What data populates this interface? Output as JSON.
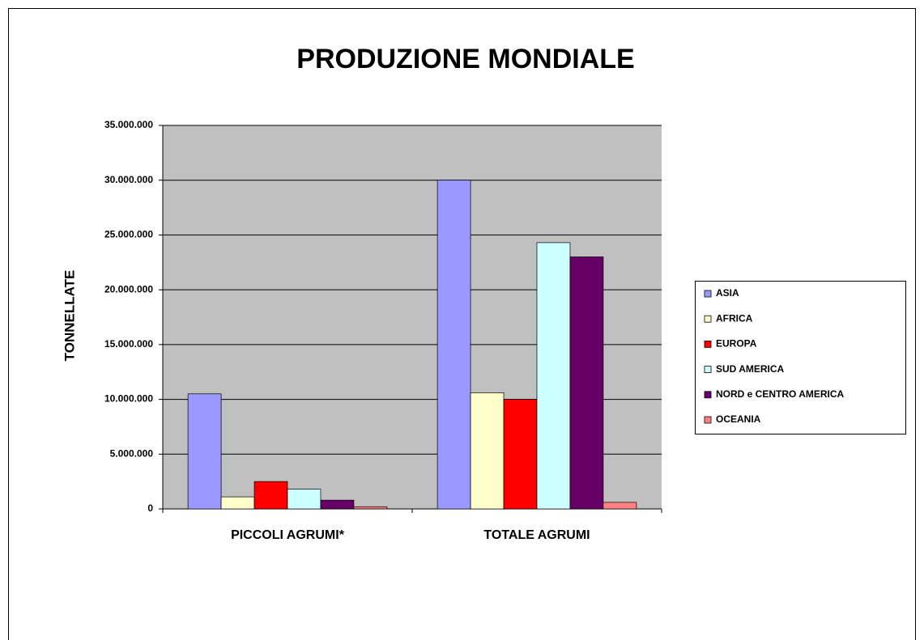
{
  "chart_data": {
    "type": "bar",
    "title": "PRODUZIONE MONDIALE",
    "y_label": "TONNELLATE",
    "categories": [
      "PICCOLI AGRUMI*",
      "TOTALE AGRUMI"
    ],
    "series": [
      {
        "name": "ASIA",
        "color": "#9999ff",
        "values": [
          10500000,
          30000000
        ]
      },
      {
        "name": "AFRICA",
        "color": "#ffffcc",
        "values": [
          1100000,
          10600000
        ]
      },
      {
        "name": "EUROPA",
        "color": "#ff0000",
        "values": [
          2500000,
          10000000
        ]
      },
      {
        "name": "SUD AMERICA",
        "color": "#ccffff",
        "values": [
          1800000,
          24300000
        ]
      },
      {
        "name": "NORD e CENTRO AMERICA",
        "color": "#660066",
        "values": [
          800000,
          23000000
        ]
      },
      {
        "name": "OCEANIA",
        "color": "#ff8080",
        "values": [
          200000,
          600000
        ]
      }
    ],
    "ylim": [
      0,
      35000000
    ],
    "yticks": [
      0,
      {
        "value": 5000000,
        "label": "5.000.000"
      },
      {
        "value": 10000000,
        "label": "10.000.000"
      },
      {
        "value": 15000000,
        "label": "15.000.000"
      },
      {
        "value": 20000000,
        "label": "20.000.000"
      },
      {
        "value": 25000000,
        "label": "25.000.000"
      },
      {
        "value": 30000000,
        "label": "30.000.000"
      },
      {
        "value": 35000000,
        "label": "35.000.000"
      }
    ],
    "grid": true,
    "legend": "right"
  }
}
